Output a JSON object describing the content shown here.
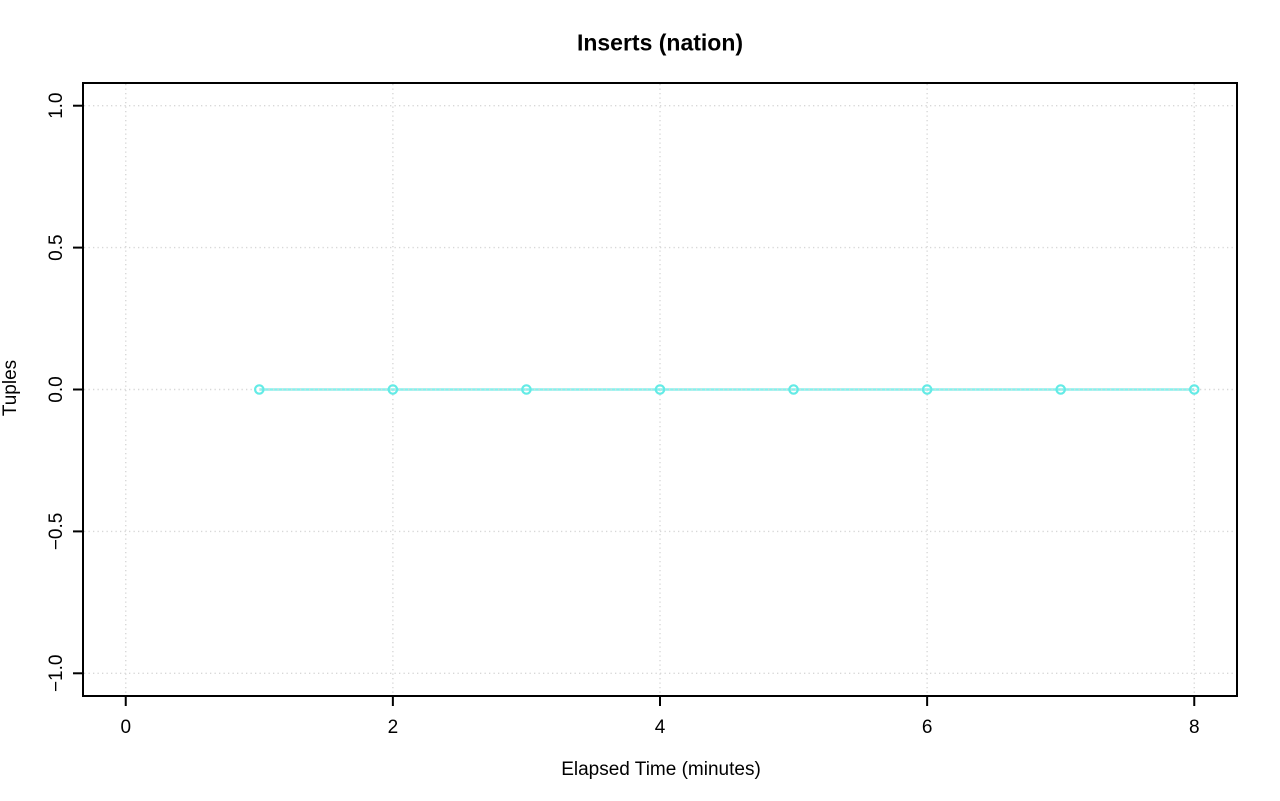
{
  "title": "Inserts (nation)",
  "colors": {
    "background": "#ffffff",
    "line": "#85F0EC",
    "marker": "#63EBE6",
    "grid": "#D7D7D7",
    "axis": "#000000",
    "text": "#000000"
  },
  "chart_data": {
    "type": "line",
    "title": "Inserts (nation)",
    "xlabel": "Elapsed Time (minutes)",
    "ylabel": "Tuples",
    "x": [
      1,
      2,
      3,
      4,
      5,
      6,
      7,
      8
    ],
    "y": [
      0,
      0,
      0,
      0,
      0,
      0,
      0,
      0
    ],
    "series_name": "Inserts (nation)",
    "marker": "open-circle",
    "line_style": "solid",
    "grid": "dotted",
    "legend": "none",
    "xlim": [
      -0.32,
      8.32
    ],
    "ylim": [
      -1.08,
      1.08
    ],
    "xticks": [
      0,
      2,
      4,
      6,
      8
    ],
    "xtick_labels": [
      "0",
      "2",
      "4",
      "6",
      "8"
    ],
    "yticks": [
      1.0,
      0.5,
      0.0,
      -0.5,
      -1.0
    ],
    "ytick_labels": [
      "1.0",
      "0.5",
      "0.0",
      "−0.5",
      "−1.0"
    ]
  }
}
